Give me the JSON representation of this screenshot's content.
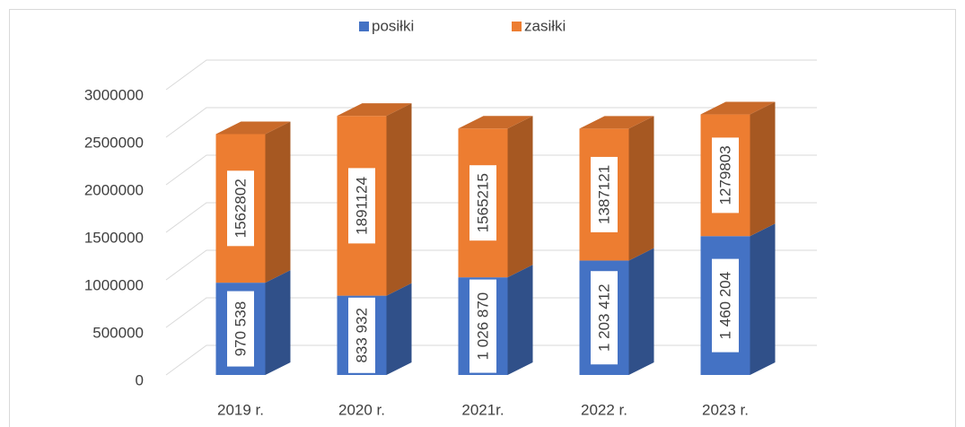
{
  "chart_data": {
    "type": "bar",
    "stacked": true,
    "three_d": true,
    "categories": [
      "2019 r.",
      "2020 r.",
      "2021r.",
      "2022 r.",
      "2023 r."
    ],
    "series": [
      {
        "name": "posiłki",
        "color": "#4472c4",
        "values": [
          970538,
          833932,
          1026870,
          1203412,
          1460204
        ],
        "value_labels": [
          "970 538",
          "833 932",
          "1 026 870",
          "1 203 412",
          "1 460 204"
        ]
      },
      {
        "name": "zasiłki",
        "color": "#ed7d31",
        "values": [
          1562802,
          1891124,
          1565215,
          1387121,
          1279803
        ]
      }
    ],
    "ylim": [
      0,
      3000000
    ],
    "yticks": [
      0,
      500000,
      1000000,
      1500000,
      2000000,
      2500000,
      3000000
    ],
    "grid": true,
    "legend": "top"
  }
}
